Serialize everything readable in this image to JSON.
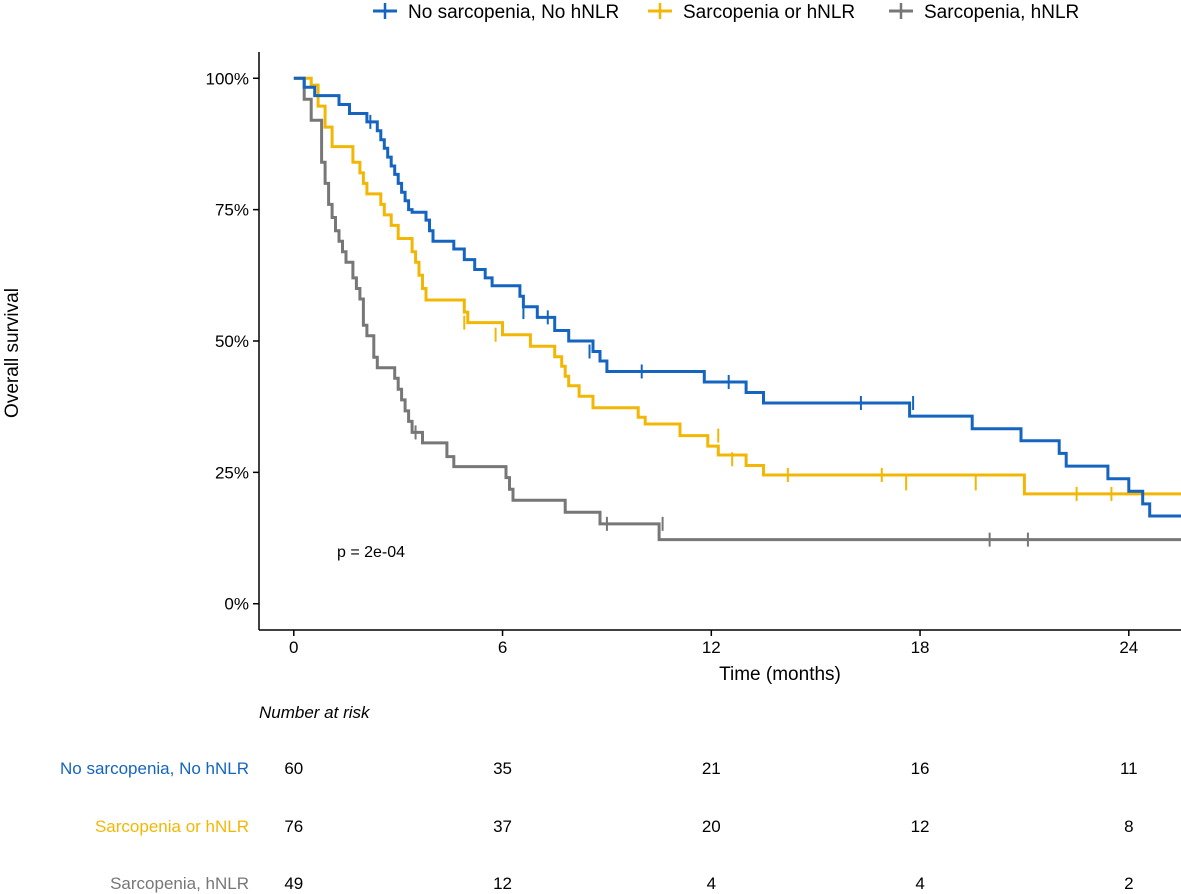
{
  "chart_data": {
    "type": "line",
    "subtype": "kaplan-meier",
    "title": "",
    "xlabel": "Time (months)",
    "ylabel": "Overall survival",
    "xlim": [
      -1,
      25.5
    ],
    "ylim": [
      -0.05,
      1.05
    ],
    "xticks": [
      0,
      6,
      12,
      18,
      24
    ],
    "xtick_labels": [
      "0",
      "6",
      "12",
      "18",
      "24"
    ],
    "yticks": [
      0,
      0.25,
      0.5,
      0.75,
      1.0
    ],
    "ytick_labels": [
      "0%",
      "25%",
      "50%",
      "75%",
      "100%"
    ],
    "grid": false,
    "legend_position": "top",
    "annotation": "p = 2e-04",
    "series": [
      {
        "name": "No sarcopenia, No hNLR",
        "color": "#1565C0",
        "steps": [
          [
            0,
            1.0
          ],
          [
            0.3,
            0.983
          ],
          [
            0.6,
            0.967
          ],
          [
            1.3,
            0.95
          ],
          [
            1.6,
            0.933
          ],
          [
            2.1,
            0.917
          ],
          [
            2.4,
            0.9
          ],
          [
            2.5,
            0.883
          ],
          [
            2.6,
            0.867
          ],
          [
            2.7,
            0.85
          ],
          [
            2.8,
            0.833
          ],
          [
            2.9,
            0.817
          ],
          [
            3.0,
            0.8
          ],
          [
            3.1,
            0.783
          ],
          [
            3.2,
            0.767
          ],
          [
            3.3,
            0.75
          ],
          [
            3.4,
            0.745
          ],
          [
            3.8,
            0.73
          ],
          [
            3.9,
            0.71
          ],
          [
            4.0,
            0.69
          ],
          [
            4.6,
            0.675
          ],
          [
            4.9,
            0.655
          ],
          [
            5.2,
            0.636
          ],
          [
            5.5,
            0.62
          ],
          [
            5.7,
            0.605
          ],
          [
            6.5,
            0.585
          ],
          [
            6.6,
            0.565
          ],
          [
            7.0,
            0.545
          ],
          [
            7.5,
            0.52
          ],
          [
            7.9,
            0.5
          ],
          [
            8.6,
            0.48
          ],
          [
            8.8,
            0.462
          ],
          [
            9.0,
            0.442
          ],
          [
            11.8,
            0.422
          ],
          [
            13.0,
            0.402
          ],
          [
            13.5,
            0.382
          ],
          [
            17.7,
            0.357
          ],
          [
            19.5,
            0.333
          ],
          [
            20.9,
            0.31
          ],
          [
            22.0,
            0.286
          ],
          [
            22.2,
            0.262
          ],
          [
            23.4,
            0.238
          ],
          [
            24.0,
            0.214
          ],
          [
            24.4,
            0.19
          ],
          [
            24.6,
            0.167
          ],
          [
            25.5,
            0.167
          ]
        ],
        "censors": [
          [
            2.2,
            0.917
          ],
          [
            6.6,
            0.555
          ],
          [
            7.3,
            0.545
          ],
          [
            8.5,
            0.48
          ],
          [
            10.0,
            0.442
          ],
          [
            12.5,
            0.422
          ],
          [
            16.3,
            0.382
          ],
          [
            17.8,
            0.382
          ]
        ]
      },
      {
        "name": "Sarcopenia or hNLR",
        "color": "#F2B705",
        "steps": [
          [
            0,
            1.0
          ],
          [
            0.5,
            0.987
          ],
          [
            0.7,
            0.947
          ],
          [
            0.9,
            0.907
          ],
          [
            1.1,
            0.87
          ],
          [
            1.7,
            0.84
          ],
          [
            1.9,
            0.82
          ],
          [
            2.0,
            0.8
          ],
          [
            2.1,
            0.78
          ],
          [
            2.5,
            0.76
          ],
          [
            2.6,
            0.74
          ],
          [
            2.8,
            0.72
          ],
          [
            3.0,
            0.695
          ],
          [
            3.4,
            0.67
          ],
          [
            3.5,
            0.65
          ],
          [
            3.6,
            0.625
          ],
          [
            3.7,
            0.6
          ],
          [
            3.8,
            0.578
          ],
          [
            4.9,
            0.555
          ],
          [
            5.0,
            0.535
          ],
          [
            6.0,
            0.512
          ],
          [
            6.8,
            0.49
          ],
          [
            7.5,
            0.47
          ],
          [
            7.7,
            0.452
          ],
          [
            7.8,
            0.433
          ],
          [
            7.9,
            0.415
          ],
          [
            8.2,
            0.395
          ],
          [
            8.6,
            0.373
          ],
          [
            9.9,
            0.355
          ],
          [
            10.1,
            0.342
          ],
          [
            11.1,
            0.32
          ],
          [
            11.9,
            0.3
          ],
          [
            12.2,
            0.283
          ],
          [
            13.0,
            0.263
          ],
          [
            13.5,
            0.245
          ],
          [
            21.0,
            0.209
          ],
          [
            25.5,
            0.209
          ]
        ],
        "censors": [
          [
            4.9,
            0.535
          ],
          [
            5.8,
            0.512
          ],
          [
            12.2,
            0.32
          ],
          [
            12.6,
            0.275
          ],
          [
            14.2,
            0.245
          ],
          [
            16.9,
            0.245
          ],
          [
            17.6,
            0.229
          ],
          [
            19.6,
            0.229
          ],
          [
            22.5,
            0.209
          ],
          [
            23.5,
            0.209
          ]
        ]
      },
      {
        "name": "Sarcopenia, hNLR",
        "color": "#777777",
        "steps": [
          [
            0,
            1.0
          ],
          [
            0.3,
            0.96
          ],
          [
            0.5,
            0.92
          ],
          [
            0.8,
            0.84
          ],
          [
            0.9,
            0.8
          ],
          [
            1.0,
            0.76
          ],
          [
            1.1,
            0.735
          ],
          [
            1.2,
            0.71
          ],
          [
            1.3,
            0.69
          ],
          [
            1.4,
            0.67
          ],
          [
            1.5,
            0.65
          ],
          [
            1.7,
            0.62
          ],
          [
            1.8,
            0.6
          ],
          [
            1.9,
            0.58
          ],
          [
            2.0,
            0.53
          ],
          [
            2.1,
            0.51
          ],
          [
            2.3,
            0.469
          ],
          [
            2.4,
            0.449
          ],
          [
            2.9,
            0.429
          ],
          [
            3.0,
            0.408
          ],
          [
            3.1,
            0.388
          ],
          [
            3.2,
            0.367
          ],
          [
            3.3,
            0.347
          ],
          [
            3.4,
            0.326
          ],
          [
            3.7,
            0.306
          ],
          [
            4.4,
            0.28
          ],
          [
            4.6,
            0.261
          ],
          [
            6.1,
            0.24
          ],
          [
            6.2,
            0.218
          ],
          [
            6.3,
            0.197
          ],
          [
            7.8,
            0.174
          ],
          [
            8.8,
            0.152
          ],
          [
            10.5,
            0.122
          ],
          [
            25.5,
            0.122
          ]
        ],
        "censors": [
          [
            3.5,
            0.326
          ],
          [
            9.0,
            0.152
          ],
          [
            10.6,
            0.152
          ],
          [
            20.0,
            0.122
          ],
          [
            21.1,
            0.122
          ]
        ]
      }
    ],
    "risk_table": {
      "title": "Number at risk",
      "times": [
        0,
        6,
        12,
        18,
        24
      ],
      "rows": [
        {
          "name": "No sarcopenia, No hNLR",
          "color": "#1565C0",
          "values": [
            "60",
            "35",
            "21",
            "16",
            "11"
          ]
        },
        {
          "name": "Sarcopenia or hNLR",
          "color": "#F2B705",
          "values": [
            "76",
            "37",
            "20",
            "12",
            "8"
          ]
        },
        {
          "name": "Sarcopenia, hNLR",
          "color": "#777777",
          "values": [
            "49",
            "12",
            "4",
            "4",
            "2"
          ]
        }
      ]
    }
  }
}
